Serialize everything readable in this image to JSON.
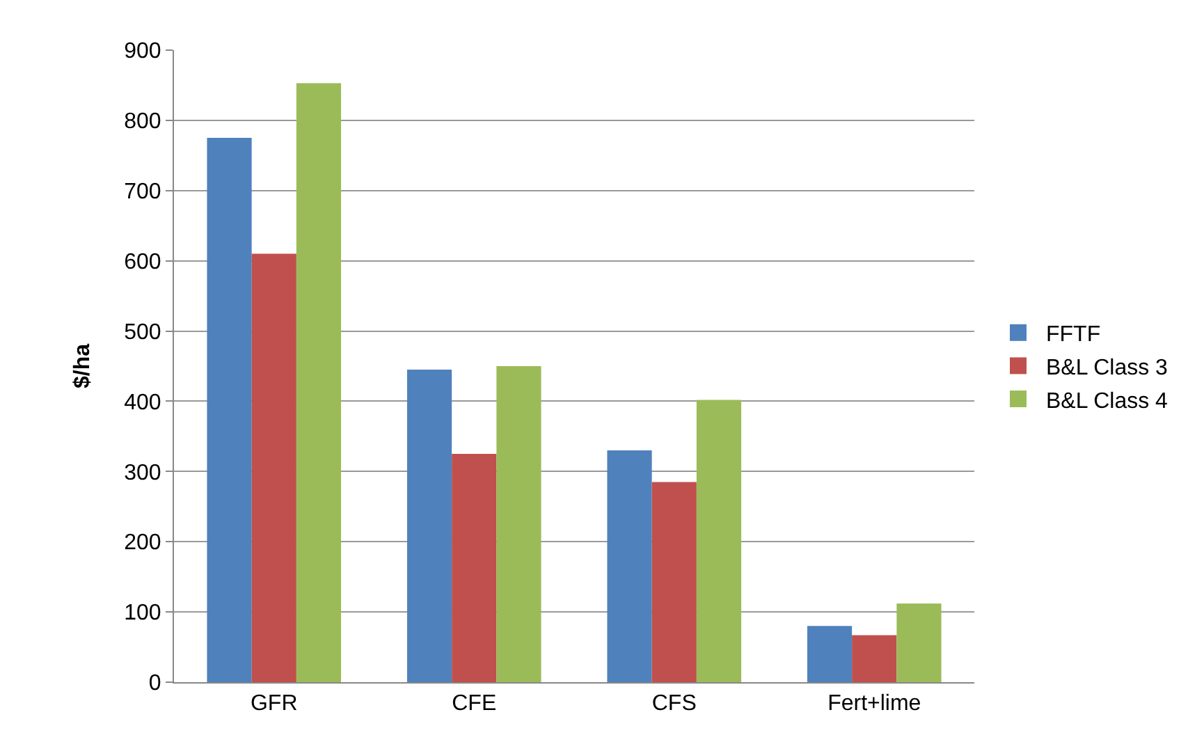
{
  "chart_data": {
    "type": "bar",
    "ylabel": "$/ha",
    "categories": [
      "GFR",
      "CFE",
      "CFS",
      "Fert+lime"
    ],
    "series": [
      {
        "name": "FFTF",
        "color": "#4f81bd",
        "values": [
          775,
          445,
          330,
          80
        ]
      },
      {
        "name": "B&L Class 3",
        "color": "#c0504d",
        "values": [
          610,
          325,
          285,
          67
        ]
      },
      {
        "name": "B&L Class 4",
        "color": "#9bbb59",
        "values": [
          853,
          450,
          402,
          112
        ]
      }
    ],
    "ylim": [
      0,
      900
    ],
    "yticks": [
      0,
      100,
      200,
      300,
      400,
      500,
      600,
      700,
      800,
      900
    ],
    "grid": "y",
    "legend": "right"
  }
}
